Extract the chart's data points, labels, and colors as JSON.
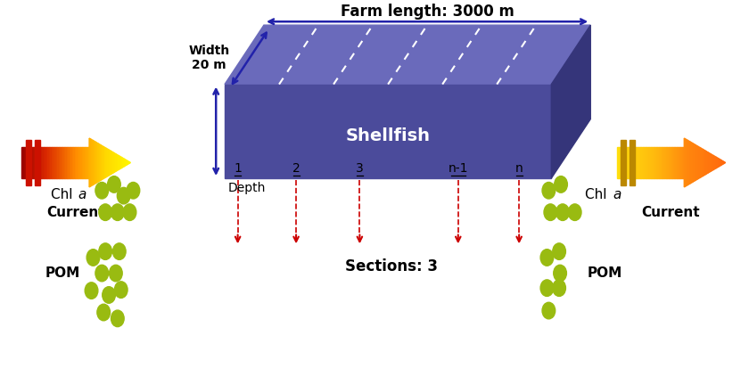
{
  "title": "Farm length: 3000 m",
  "shellfish_label": "Shellfish",
  "current_label": "Current",
  "width_label": "Width\n20 m",
  "depth_label": "Depth",
  "sections_label": "Sections: 3",
  "pom_label": "POM",
  "section_labels": [
    "1",
    "2",
    "3",
    "n-1",
    "n"
  ],
  "olive_color": "#99BB11",
  "box_front_color": "#4B4B9B",
  "box_top_color": "#6A6ABB",
  "box_side_color": "#35357A",
  "arrow_color": "#2222AA",
  "section_line_color": "#CC0000",
  "bg_color": "#FFFFFF"
}
